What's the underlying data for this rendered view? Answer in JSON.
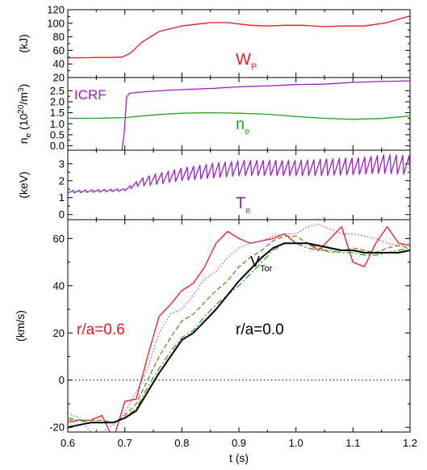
{
  "chart_data": [
    {
      "type": "line",
      "panel": "stored-energy",
      "ylabel": "(kJ)",
      "ylim": [
        20,
        120
      ],
      "yticks": [
        20,
        40,
        60,
        80,
        100,
        120
      ],
      "xlim": [
        0.6,
        1.2
      ],
      "annotations": [
        {
          "text": "W",
          "subscript": "P",
          "color": "#e8191e"
        }
      ],
      "series": [
        {
          "color": "#e8191e",
          "x": [
            0.6,
            0.62,
            0.65,
            0.67,
            0.695,
            0.71,
            0.73,
            0.76,
            0.8,
            0.85,
            0.88,
            0.92,
            0.95,
            0.98,
            1.01,
            1.05,
            1.08,
            1.12,
            1.16,
            1.2
          ],
          "y": [
            49,
            49,
            49.5,
            49.5,
            50,
            56,
            72,
            88,
            96,
            101,
            101,
            97,
            96,
            97,
            97,
            95,
            96,
            96,
            101,
            111
          ]
        }
      ]
    },
    {
      "type": "line",
      "panel": "density",
      "ylabel": "n",
      "ylabel_sub": "e",
      "ylabel_rest": " (10",
      "ylabel_sup": "20",
      "ylabel_end": "/m",
      "ylabel_sup2": "3",
      "ylabel_close": ")",
      "ylim": [
        -0.2,
        3.1
      ],
      "yticks": [
        0.0,
        0.5,
        1.0,
        1.5,
        2.0,
        2.5
      ],
      "xlim": [
        0.6,
        1.2
      ],
      "annotations": [
        {
          "text": "ICRF",
          "color": "#9b1fbf"
        },
        {
          "text": "n",
          "subscript": "e",
          "color": "#27a327"
        }
      ],
      "series": [
        {
          "color": "#27a327",
          "x": [
            0.6,
            0.65,
            0.7,
            0.72,
            0.76,
            0.8,
            0.85,
            0.9,
            0.95,
            1.0,
            1.05,
            1.1,
            1.15,
            1.2
          ],
          "y": [
            1.25,
            1.25,
            1.28,
            1.33,
            1.42,
            1.48,
            1.5,
            1.48,
            1.43,
            1.33,
            1.25,
            1.2,
            1.24,
            1.35
          ]
        },
        {
          "color": "#9b1fbf",
          "x": [
            0.695,
            0.699,
            0.703,
            0.708,
            0.72,
            0.76,
            0.8,
            0.85,
            0.9,
            0.95,
            1.0,
            1.05,
            1.1,
            1.15,
            1.2
          ],
          "y": [
            -0.2,
            0.6,
            2.2,
            2.38,
            2.42,
            2.5,
            2.55,
            2.6,
            2.68,
            2.72,
            2.78,
            2.8,
            2.88,
            2.92,
            2.95
          ]
        }
      ]
    },
    {
      "type": "line",
      "panel": "temperature",
      "ylabel": "(keV)",
      "ylim": [
        -0.3,
        3.8
      ],
      "yticks": [
        0,
        1,
        2,
        3
      ],
      "xlim": [
        0.6,
        1.2
      ],
      "annotations": [
        {
          "text": "T",
          "subscript": "e",
          "color": "#9b1fbf"
        }
      ],
      "series": [
        {
          "color": "#9b1fbf",
          "x": [
            0.6,
            0.65,
            0.69,
            0.7,
            0.72,
            0.75,
            0.8,
            0.85,
            0.9,
            0.95,
            1.0,
            1.05,
            1.1,
            1.15,
            1.2
          ],
          "y": [
            1.35,
            1.4,
            1.45,
            1.55,
            1.9,
            2.1,
            2.4,
            2.6,
            2.75,
            2.75,
            2.75,
            2.8,
            2.85,
            3.0,
            2.9
          ],
          "sawtooth": [
            0.15,
            0.15,
            0.15,
            0.3,
            0.5,
            0.7,
            0.8,
            0.9,
            0.9,
            0.9,
            0.9,
            1.0,
            1.0,
            1.1,
            1.1
          ]
        }
      ]
    },
    {
      "type": "line",
      "panel": "toroidal-velocity",
      "ylabel": "(km/s)",
      "xlabel": "t (s)",
      "ylim": [
        -22,
        68
      ],
      "yticks": [
        -20,
        0,
        20,
        40,
        60
      ],
      "xlim": [
        0.6,
        1.2
      ],
      "xticks": [
        0.6,
        0.7,
        0.8,
        0.9,
        1.0,
        1.1,
        1.2
      ],
      "xtick_labels": [
        "0.6",
        "0.7",
        "0.8",
        "0.9",
        "1.0",
        "1.1",
        "1.2"
      ],
      "reference_line": {
        "y": 0,
        "style": "dotted"
      },
      "annotations": [
        {
          "text": "V",
          "subscript": "Tor",
          "color": "#000000"
        },
        {
          "text": "r/a=0.6",
          "color": "#e8191e"
        },
        {
          "text": "r/a=0.0",
          "color": "#000000"
        }
      ],
      "series": [
        {
          "color": "#e8191e",
          "dash": "solid",
          "x": [
            0.6,
            0.62,
            0.64,
            0.66,
            0.68,
            0.7,
            0.72,
            0.74,
            0.76,
            0.78,
            0.8,
            0.82,
            0.84,
            0.86,
            0.88,
            0.9,
            0.92,
            0.94,
            0.96,
            0.98,
            1.0,
            1.02,
            1.04,
            1.06,
            1.08,
            1.1,
            1.12,
            1.14,
            1.16,
            1.18,
            1.2
          ],
          "y": [
            -18,
            -17,
            -17,
            -15,
            -25,
            -9,
            -8,
            10,
            27,
            32,
            38,
            41,
            48,
            58,
            63,
            60,
            58,
            59,
            60,
            62,
            58,
            58,
            55,
            60,
            65,
            50,
            48,
            58,
            65,
            58,
            57
          ]
        },
        {
          "color": "#b03fd6",
          "dash": "dotted",
          "x": [
            0.6,
            0.62,
            0.64,
            0.66,
            0.68,
            0.7,
            0.72,
            0.74,
            0.76,
            0.78,
            0.8,
            0.82,
            0.84,
            0.86,
            0.88,
            0.9,
            0.92,
            0.94,
            0.96,
            0.98,
            1.0,
            1.02,
            1.04,
            1.06,
            1.08,
            1.1,
            1.12,
            1.14,
            1.16,
            1.18,
            1.2
          ],
          "y": [
            -14,
            -16,
            -22,
            -22,
            -19,
            -14,
            -5,
            5,
            20,
            28,
            30,
            36,
            43,
            46,
            52,
            56,
            58,
            59,
            61,
            62,
            62,
            65,
            66,
            64,
            62,
            62,
            61,
            60,
            58,
            57,
            58
          ]
        },
        {
          "color": "#8b7a1a",
          "dash": "dashed",
          "x": [
            0.6,
            0.62,
            0.64,
            0.66,
            0.68,
            0.7,
            0.72,
            0.74,
            0.76,
            0.78,
            0.8,
            0.82,
            0.84,
            0.86,
            0.88,
            0.9,
            0.92,
            0.94,
            0.96,
            0.98,
            1.0,
            1.02,
            1.04,
            1.06,
            1.08,
            1.1,
            1.12,
            1.14,
            1.16,
            1.18,
            1.2
          ],
          "y": [
            -17,
            -17,
            -17,
            -17,
            -18,
            -15,
            -10,
            0,
            10,
            18,
            25,
            28,
            33,
            38,
            42,
            48,
            52,
            55,
            59,
            61,
            61,
            58,
            56,
            54,
            55,
            56,
            55,
            54,
            56,
            57,
            56
          ]
        },
        {
          "color": "#27a327",
          "dash": "dashdot",
          "x": [
            0.6,
            0.62,
            0.64,
            0.66,
            0.68,
            0.7,
            0.72,
            0.74,
            0.76,
            0.78,
            0.8,
            0.82,
            0.84,
            0.86,
            0.88,
            0.9,
            0.92,
            0.94,
            0.96,
            0.98,
            1.0,
            1.02,
            1.04,
            1.06,
            1.08,
            1.1,
            1.12,
            1.14,
            1.16,
            1.18,
            1.2
          ],
          "y": [
            -16,
            -17,
            -18,
            -18,
            -18,
            -16,
            -12,
            -3,
            5,
            12,
            18,
            21,
            27,
            32,
            36,
            40,
            45,
            50,
            55,
            58,
            58,
            56,
            55,
            55,
            54,
            54,
            53,
            53,
            54,
            55,
            56
          ]
        },
        {
          "color": "#000000",
          "dash": "solid",
          "width": 2,
          "x": [
            0.6,
            0.62,
            0.64,
            0.66,
            0.68,
            0.7,
            0.72,
            0.74,
            0.76,
            0.78,
            0.8,
            0.82,
            0.84,
            0.86,
            0.88,
            0.9,
            0.92,
            0.94,
            0.96,
            0.98,
            1.0,
            1.02,
            1.04,
            1.06,
            1.08,
            1.1,
            1.12,
            1.14,
            1.16,
            1.18,
            1.2
          ],
          "y": [
            -20,
            -19,
            -18,
            -18,
            -18,
            -16,
            -13,
            -5,
            3,
            10,
            17,
            20,
            25,
            30,
            36,
            42,
            47,
            52,
            56,
            58,
            58,
            58,
            57,
            56,
            55,
            55,
            54,
            54,
            54,
            54,
            55
          ]
        }
      ]
    }
  ]
}
